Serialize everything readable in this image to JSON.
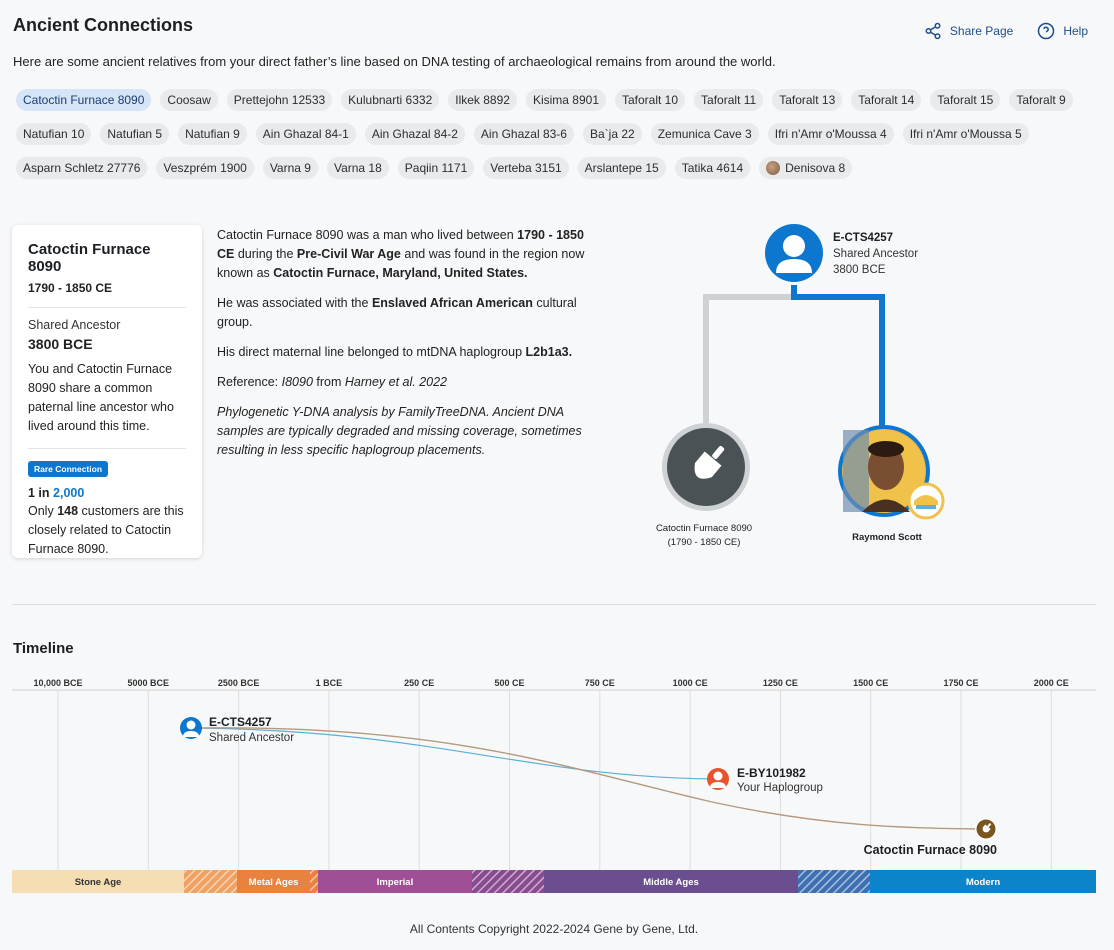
{
  "page": {
    "title": "Ancient Connections",
    "intro": "Here are some ancient relatives from your direct father’s line based on DNA testing of archaeological remains from around the world."
  },
  "header": {
    "share_label": "Share Page",
    "help_label": "Help"
  },
  "chips": [
    "Catoctin Furnace 8090",
    "Coosaw",
    "Prettejohn 12533",
    "Kulubnarti 6332",
    "Ilkek 8892",
    "Kisima 8901",
    "Taforalt 10",
    "Taforalt 11",
    "Taforalt 13",
    "Taforalt 14",
    "Taforalt 15",
    "Taforalt 9",
    "Natufian 10",
    "Natufian 5",
    "Natufian 9",
    "Ain Ghazal 84-1",
    "Ain Ghazal 84-2",
    "Ain Ghazal 83-6",
    "Ba`ja 22",
    "Zemunica Cave 3",
    "Ifri n'Amr o'Moussa 4",
    "Ifri n'Amr o'Moussa 5",
    "Asparn Schletz 27776",
    "Veszprém 1900",
    "Varna 9",
    "Varna 18",
    "Paqiin 1171",
    "Verteba 3151",
    "Arslantepe 15",
    "Tatika 4614",
    "Denisova 8"
  ],
  "card": {
    "title": "Catoctin Furnace 8090",
    "dates": "1790 - 1850 CE",
    "shared_label": "Shared Ancestor",
    "shared_value": "3800 BCE",
    "shared_text": "You and Catoctin Furnace 8090 share a common paternal line ancestor who lived around this time.",
    "badge": "Rare Connection",
    "odds_prefix": "1 in ",
    "odds_value": "2,000",
    "customers_prefix": "Only ",
    "customers_count": "148",
    "customers_suffix": " customers are this closely related to Catoctin Furnace 8090."
  },
  "description": {
    "p1_a": "Catoctin Furnace 8090 was a man who lived between ",
    "p1_b": "1790 - 1850 CE",
    "p1_c": " during the ",
    "p1_d": "Pre-Civil War Age",
    "p1_e": " and was found in the region now known as ",
    "p1_f": "Catoctin Furnace, Maryland, United States.",
    "p2_a": "He was associated with the ",
    "p2_b": "Enslaved African American",
    "p2_c": " cultural group.",
    "p3_a": "His direct maternal line belonged to mtDNA haplogroup ",
    "p3_b": "L2b1a3.",
    "p4_a": "Reference: ",
    "p4_b": "I8090",
    "p4_c": " from ",
    "p4_d": "Harney et al. 2022",
    "p5": "Phylogenetic Y-DNA analysis by FamilyTreeDNA. Ancient DNA samples are typically degraded and missing coverage, sometimes resulting in less specific haplogroup placements."
  },
  "tree": {
    "ancestor_haplogroup": "E-CTS4257",
    "ancestor_label": "Shared Ancestor",
    "ancestor_date": "3800 BCE",
    "ancient_name": "Catoctin Furnace 8090",
    "ancient_dates": "(1790 - 1850 CE)",
    "user_name": "Raymond Scott",
    "colors": {
      "ancient_line": "#cfd2d5",
      "user_line": "#0d77cf"
    }
  },
  "timeline": {
    "title": "Timeline",
    "ticks": [
      "10,000 BCE",
      "5000 BCE",
      "2500 BCE",
      "1 BCE",
      "250 CE",
      "500 CE",
      "750 CE",
      "1000 CE",
      "1250 CE",
      "1500 CE",
      "1750 CE",
      "2000 CE"
    ],
    "ancestor_haplogroup": "E-CTS4257",
    "ancestor_label": "Shared Ancestor",
    "user_haplogroup": "E-BY101982",
    "user_label": "Your Haplogroup",
    "ancient_label": "Catoctin Furnace 8090",
    "eras": [
      {
        "label": "Stone Age",
        "color": "#f5deb3",
        "hatched": false
      },
      {
        "label": "",
        "color": "#f0a060",
        "hatched": true
      },
      {
        "label": "Metal Ages",
        "color": "#e8823e",
        "hatched": false
      },
      {
        "label": "",
        "color": "#e8823e",
        "hatched": true
      },
      {
        "label": "Imperial",
        "color": "#a04f96",
        "hatched": false
      },
      {
        "label": "",
        "color": "#8a4a90",
        "hatched": true
      },
      {
        "label": "Middle Ages",
        "color": "#6b4e8f",
        "hatched": false
      },
      {
        "label": "",
        "color": "#3e6fb0",
        "hatched": true
      },
      {
        "label": "Modern",
        "color": "#0b84c9",
        "hatched": false
      }
    ],
    "colors": {
      "user_path": "#5ab0d6",
      "ancient_path": "#b59a7e",
      "ancestor_icon": "#0d77cf",
      "user_icon": "#e8532e",
      "ancient_icon": "#7a5520"
    }
  },
  "footer": {
    "copyright": "All Contents Copyright 2022-2024 Gene by Gene, Ltd."
  }
}
